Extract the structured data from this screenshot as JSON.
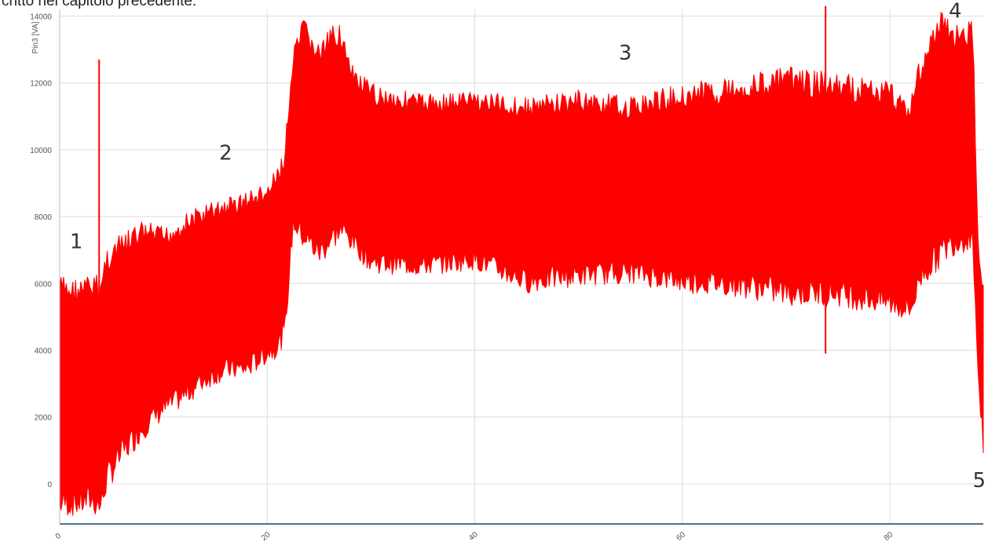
{
  "caption": "critto nel capitolo precedente.",
  "colors": {
    "series": "#ff0000",
    "grid": "#dcdcdc",
    "axis": "#4a6f94",
    "background": "#ffffff"
  },
  "chart_data": {
    "type": "area",
    "title": "",
    "xlabel": "",
    "ylabel": "Pin3 [VA]",
    "xlim": [
      0,
      89
    ],
    "ylim": [
      -1200,
      14200
    ],
    "grid": true,
    "legend": "none",
    "x_ticks": [
      "0",
      "20",
      "40",
      "60",
      "80"
    ],
    "x_tick_values": [
      0,
      20,
      40,
      60,
      80
    ],
    "y_ticks": [
      "0",
      "2000",
      "4000",
      "6000",
      "8000",
      "10000",
      "12000",
      "14000"
    ],
    "y_tick_values": [
      0,
      2000,
      4000,
      6000,
      8000,
      10000,
      12000,
      14000
    ],
    "series": [
      {
        "color": "#ff0000",
        "x": [
          0,
          1,
          2,
          3,
          4,
          4.5,
          6,
          8,
          10,
          12,
          14,
          16,
          18,
          20,
          21,
          21.7,
          22.5,
          23.5,
          25,
          27,
          28,
          30,
          35,
          40,
          45,
          50,
          55,
          60,
          65,
          70,
          75,
          80,
          82,
          83,
          85,
          86,
          87,
          88,
          88.5,
          89
        ],
        "max": [
          6300,
          6200,
          6200,
          6300,
          6300,
          7200,
          7500,
          7900,
          7700,
          8100,
          8400,
          8600,
          8800,
          9000,
          9500,
          10200,
          13000,
          14000,
          13200,
          14000,
          12600,
          12000,
          11700,
          11800,
          11600,
          11800,
          11600,
          12000,
          12200,
          12500,
          12300,
          12100,
          11600,
          13000,
          14200,
          13900,
          13800,
          13900,
          7500,
          6200
        ],
        "min": [
          -1000,
          -1000,
          -1000,
          -900,
          -1100,
          -300,
          500,
          1300,
          1900,
          2300,
          2800,
          3100,
          3100,
          3600,
          3800,
          4200,
          7500,
          7000,
          6500,
          7200,
          7000,
          6300,
          6200,
          6400,
          5700,
          5900,
          6000,
          5700,
          5600,
          5300,
          5300,
          5000,
          4800,
          5800,
          6500,
          6800,
          6900,
          7000,
          3000,
          800
        ]
      }
    ],
    "spikes": [
      {
        "x": 3.8,
        "min": 5200,
        "max": 12700
      },
      {
        "x": 73.8,
        "min": 3900,
        "max": 14300
      }
    ],
    "annotations": [
      {
        "text": "1",
        "x": 1.6,
        "y": 7050
      },
      {
        "text": "2",
        "x": 16.0,
        "y": 9700
      },
      {
        "text": "3",
        "x": 54.5,
        "y": 12700
      },
      {
        "text": "4",
        "x": 86.3,
        "y": 13950
      },
      {
        "text": "5",
        "x": 88.6,
        "y": -100
      }
    ]
  }
}
